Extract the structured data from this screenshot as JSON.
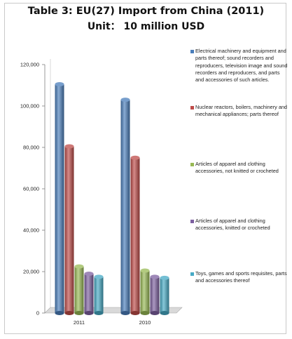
{
  "chart_data": {
    "type": "bar",
    "title": "Table 3: EU(27) Import from China (2011)",
    "subtitle": "Unit： 10 million USD",
    "categories": [
      "2011",
      "2010"
    ],
    "ylim": [
      0,
      120000
    ],
    "yticks": [
      "0",
      "20,000",
      "40,000",
      "60,000",
      "80,000",
      "100,000",
      "120,000"
    ],
    "grid": false,
    "legend_position": "right",
    "series": [
      {
        "name": "Electrical machinery and equipment and parts thereof; sound recorders and reproducers, television image and sound recorders and reproducers, and parts and accessories of such articles.",
        "color": "#4a7ebb",
        "values": [
          110500,
          103000
        ]
      },
      {
        "name": "Nuclear reactors, boilers, machinery and mechanical appliances; parts thereof",
        "color": "#be4b48",
        "values": [
          80500,
          75000
        ]
      },
      {
        "name": "Articles of apparel and clothing accessories, not knitted or crocheted",
        "color": "#98b954",
        "values": [
          22500,
          20500
        ]
      },
      {
        "name": "Articles of apparel and clothing accessories, knitted or crocheted",
        "color": "#7d60a0",
        "values": [
          19000,
          17500
        ]
      },
      {
        "name": "Toys, games and sports requisites, parts and accessories thereof",
        "color": "#46aac5",
        "values": [
          17500,
          17000
        ]
      }
    ]
  }
}
